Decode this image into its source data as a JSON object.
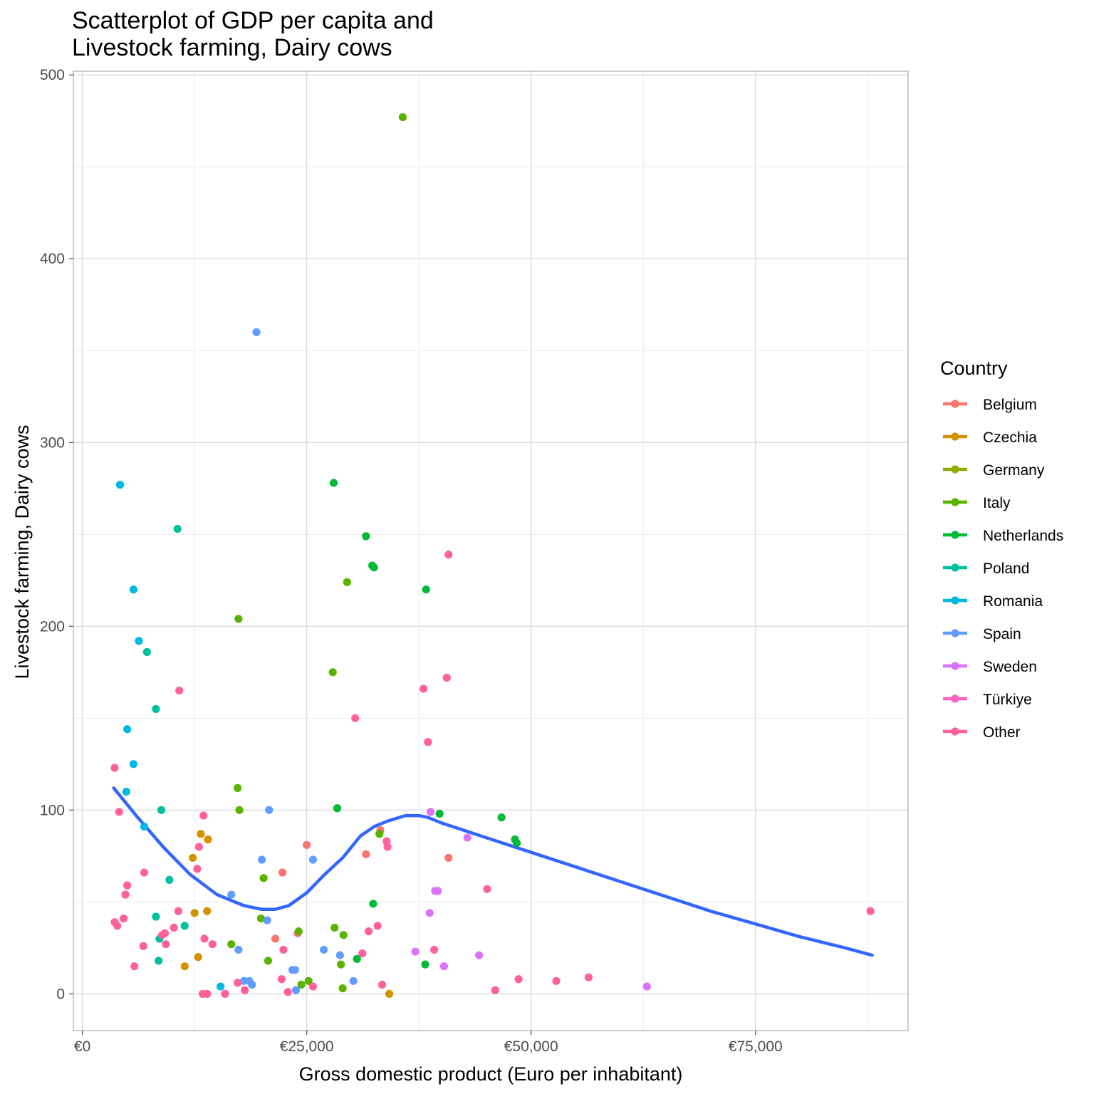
{
  "chart_data": {
    "type": "scatter",
    "title_lines": [
      "Scatterplot of GDP per capita and",
      "Livestock farming, Dairy cows"
    ],
    "xlabel": "Gross domestic product (Euro per inhabitant)",
    "ylabel": "Livestock farming, Dairy cows",
    "xlim": [
      -1000,
      92000
    ],
    "ylim": [
      -20,
      502
    ],
    "x_ticks": [
      0,
      25000,
      50000,
      75000
    ],
    "x_tick_labels": [
      "€0",
      "€25,000",
      "€50,000",
      "€75,000"
    ],
    "y_ticks": [
      0,
      100,
      200,
      300,
      400,
      500
    ],
    "y_tick_labels": [
      "0",
      "100",
      "200",
      "300",
      "400",
      "500"
    ],
    "grid": true,
    "legend": {
      "title": "Country",
      "placement": "right"
    },
    "series": [
      {
        "name": "Belgium",
        "color": "#F8766D",
        "points": [
          [
            25000,
            81
          ],
          [
            22300,
            66
          ],
          [
            21500,
            30
          ],
          [
            33200,
            89
          ],
          [
            31600,
            76
          ],
          [
            40800,
            74
          ],
          [
            24000,
            33
          ]
        ]
      },
      {
        "name": "Czechia",
        "color": "#D39200",
        "points": [
          [
            13200,
            87
          ],
          [
            14000,
            84
          ],
          [
            12300,
            74
          ],
          [
            12500,
            44
          ],
          [
            13900,
            45
          ],
          [
            12900,
            20
          ],
          [
            11400,
            15
          ],
          [
            34200,
            0
          ]
        ]
      },
      {
        "name": "Germany",
        "color": "#93AA00",
        "points": []
      },
      {
        "name": "Italy",
        "color": "#5BB300",
        "points": [
          [
            35700,
            477
          ],
          [
            29500,
            224
          ],
          [
            17400,
            204
          ],
          [
            27900,
            175
          ],
          [
            17300,
            112
          ],
          [
            17500,
            100
          ],
          [
            20200,
            63
          ],
          [
            19900,
            41
          ],
          [
            24100,
            34
          ],
          [
            28100,
            36
          ],
          [
            29100,
            32
          ],
          [
            16600,
            27
          ],
          [
            20700,
            18
          ],
          [
            28800,
            16
          ],
          [
            25200,
            7
          ],
          [
            24400,
            5
          ],
          [
            29000,
            3
          ],
          [
            33100,
            87
          ]
        ]
      },
      {
        "name": "Netherlands",
        "color": "#00BA38",
        "points": [
          [
            28000,
            278
          ],
          [
            31600,
            249
          ],
          [
            32300,
            233
          ],
          [
            32500,
            232
          ],
          [
            38300,
            220
          ],
          [
            28400,
            101
          ],
          [
            39800,
            98
          ],
          [
            46700,
            96
          ],
          [
            48200,
            84
          ],
          [
            48400,
            82
          ],
          [
            32400,
            49
          ],
          [
            30600,
            19
          ],
          [
            38200,
            16
          ]
        ]
      },
      {
        "name": "Poland",
        "color": "#00C19F",
        "points": [
          [
            10600,
            253
          ],
          [
            7200,
            186
          ],
          [
            8200,
            155
          ],
          [
            8800,
            100
          ],
          [
            9700,
            62
          ],
          [
            8200,
            42
          ],
          [
            11400,
            37
          ],
          [
            8600,
            30
          ],
          [
            8500,
            18
          ]
        ]
      },
      {
        "name": "Romania",
        "color": "#00B9E3",
        "points": [
          [
            4200,
            277
          ],
          [
            5700,
            220
          ],
          [
            6300,
            192
          ],
          [
            5000,
            144
          ],
          [
            5700,
            125
          ],
          [
            4900,
            110
          ],
          [
            6900,
            91
          ],
          [
            15400,
            4
          ]
        ]
      },
      {
        "name": "Spain",
        "color": "#619CFF",
        "points": [
          [
            19400,
            360
          ],
          [
            20800,
            100
          ],
          [
            20000,
            73
          ],
          [
            25700,
            73
          ],
          [
            16600,
            54
          ],
          [
            20600,
            40
          ],
          [
            17400,
            24
          ],
          [
            26900,
            24
          ],
          [
            28700,
            21
          ],
          [
            23400,
            13
          ],
          [
            23700,
            13
          ],
          [
            18000,
            7
          ],
          [
            18600,
            7
          ],
          [
            18900,
            5
          ],
          [
            30200,
            7
          ],
          [
            23800,
            2
          ]
        ]
      },
      {
        "name": "Sweden",
        "color": "#DB72FB",
        "points": [
          [
            38800,
            99
          ],
          [
            42900,
            85
          ],
          [
            39300,
            56
          ],
          [
            39600,
            56
          ],
          [
            38700,
            44
          ],
          [
            37100,
            23
          ],
          [
            44200,
            21
          ],
          [
            40300,
            15
          ],
          [
            62900,
            4
          ]
        ]
      },
      {
        "name": "Türkiye",
        "color": "#FF61C3",
        "points": []
      },
      {
        "name": "Other",
        "color": "#FF619C",
        "points": [
          [
            40800,
            239
          ],
          [
            40600,
            172
          ],
          [
            38000,
            166
          ],
          [
            10800,
            165
          ],
          [
            30400,
            150
          ],
          [
            38500,
            137
          ],
          [
            3600,
            123
          ],
          [
            4100,
            99
          ],
          [
            13500,
            97
          ],
          [
            33900,
            83
          ],
          [
            34000,
            80
          ],
          [
            13000,
            80
          ],
          [
            12800,
            68
          ],
          [
            6900,
            66
          ],
          [
            5000,
            59
          ],
          [
            4800,
            54
          ],
          [
            45100,
            57
          ],
          [
            87800,
            45
          ],
          [
            10700,
            45
          ],
          [
            4600,
            41
          ],
          [
            3600,
            39
          ],
          [
            3900,
            37
          ],
          [
            10200,
            36
          ],
          [
            32900,
            37
          ],
          [
            9200,
            33
          ],
          [
            8900,
            32
          ],
          [
            13600,
            30
          ],
          [
            14500,
            27
          ],
          [
            9300,
            27
          ],
          [
            6800,
            26
          ],
          [
            31900,
            34
          ],
          [
            39200,
            24
          ],
          [
            31200,
            22
          ],
          [
            22400,
            24
          ],
          [
            5800,
            15
          ],
          [
            22200,
            8
          ],
          [
            48600,
            8
          ],
          [
            52800,
            7
          ],
          [
            56400,
            9
          ],
          [
            17300,
            6
          ],
          [
            33400,
            5
          ],
          [
            25700,
            4
          ],
          [
            46000,
            2
          ],
          [
            18100,
            2
          ],
          [
            22900,
            1
          ],
          [
            13400,
            0
          ],
          [
            13900,
            0
          ],
          [
            15900,
            0
          ]
        ]
      }
    ],
    "smooth": {
      "name": "trend",
      "color": "#3366FF",
      "x": [
        3500,
        6000,
        9000,
        12000,
        15000,
        18000,
        20000,
        21500,
        23000,
        25000,
        27000,
        29000,
        31000,
        32500,
        34000,
        36000,
        37500,
        38500,
        40000,
        45000,
        50000,
        55000,
        60000,
        65000,
        70000,
        75000,
        80000,
        85000,
        88000
      ],
      "y": [
        112,
        97,
        80,
        65,
        54,
        48,
        46,
        46,
        48,
        55,
        65,
        74,
        86,
        91,
        94,
        97,
        97,
        96,
        93,
        85,
        77,
        69,
        61,
        53,
        45,
        38,
        31,
        25,
        21
      ]
    }
  }
}
